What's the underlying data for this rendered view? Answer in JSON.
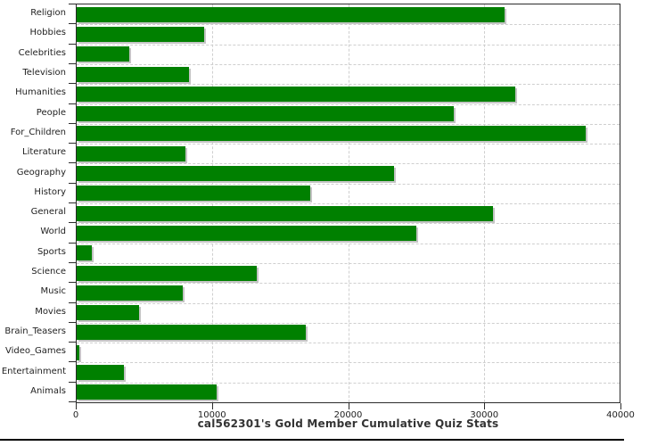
{
  "chart_data": {
    "type": "bar",
    "orientation": "horizontal",
    "title": "cal562301's Gold Member Cumulative Quiz Stats",
    "categories": [
      "Religion",
      "Hobbies",
      "Celebrities",
      "Television",
      "Humanities",
      "People",
      "For_Children",
      "Literature",
      "Geography",
      "History",
      "General",
      "World",
      "Sports",
      "Science",
      "Music",
      "Movies",
      "Brain_Teasers",
      "Video_Games",
      "Entertainment",
      "Animals"
    ],
    "values": [
      31500,
      9400,
      3900,
      8300,
      32300,
      27800,
      37500,
      8000,
      23400,
      17200,
      30700,
      25000,
      1100,
      13300,
      7800,
      4600,
      16900,
      200,
      3500,
      10300
    ],
    "xlabel": "",
    "ylabel": "",
    "xlim": [
      0,
      40000
    ],
    "x_ticks": [
      0,
      10000,
      20000,
      30000,
      40000
    ],
    "bar_color": "#008000",
    "bar_shadow_color": "#c4c4c4",
    "frame_color": "#2b2b2b",
    "grid_color": "#cfcfcf",
    "grid_style": "dashed",
    "legend": "none"
  }
}
